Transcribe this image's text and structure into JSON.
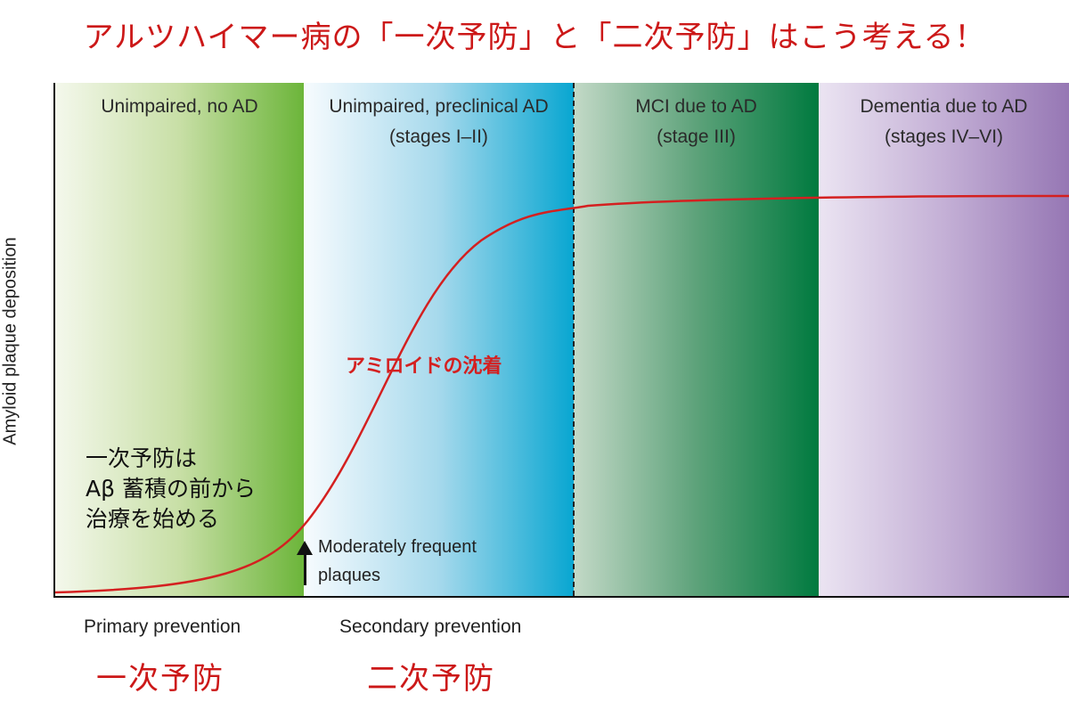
{
  "title": "アルツハイマー病の「一次予防」と「二次予防」はこう考える！",
  "y_axis_label": "Amyloid plaque deposition",
  "stages": [
    {
      "line1": "Unimpaired, no AD",
      "line2": "",
      "color": "#6cb53a"
    },
    {
      "line1": "Unimpaired, preclinical AD",
      "line2": "(stages I–II)",
      "color": "#08a6d1"
    },
    {
      "line1": "MCI due to AD",
      "line2": "(stage III)",
      "color": "#007a3f"
    },
    {
      "line1": "Dementia due to AD",
      "line2": "(stages IV–VI)",
      "color": "#9677b4"
    }
  ],
  "curve": {
    "label": "アミロイドの沈着",
    "color": "#d42020"
  },
  "note": {
    "line1": "一次予防は",
    "line2": "Aβ 蓄積の前から",
    "line3": "治療を始める"
  },
  "marker": {
    "line1": "Moderately frequent",
    "line2": "plaques"
  },
  "prevention": {
    "primary": "Primary prevention",
    "primary_ja": "一次予防",
    "secondary": "Secondary prevention",
    "secondary_ja": "二次予防"
  }
}
